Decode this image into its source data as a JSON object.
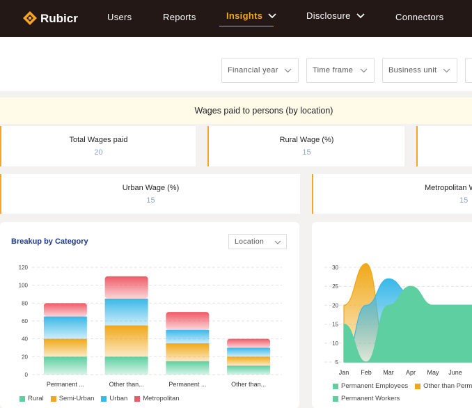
{
  "nav": {
    "brand": "Rubicr",
    "items": [
      "Users",
      "Reports",
      "Insights",
      "Disclosure",
      "Connectors"
    ]
  },
  "filters": {
    "financial_year": "Financial year",
    "time_frame": "Time frame",
    "business_unit": "Business unit"
  },
  "section": {
    "title": "Wages paid to persons (by location)"
  },
  "kpis": [
    {
      "title": "Total Wages paid",
      "value": "20"
    },
    {
      "title": "Rural Wage (%)",
      "value": "15"
    },
    {
      "title": "Urban Wage (%)",
      "value": "15"
    },
    {
      "title": "Metropolitan W",
      "value": "15"
    }
  ],
  "breakup": {
    "title": "Breakup by Category",
    "select": "Location"
  },
  "colors": {
    "accent": "#f5a623",
    "rural": "#5dcfa0",
    "semi_urban": "#f0a818",
    "urban": "#3ab8e8",
    "metropolitan": "#ef5a66",
    "nav_bg": "#231815"
  },
  "chart_data": [
    {
      "type": "bar",
      "stacked": true,
      "categories": [
        "Permanent ...",
        "Other than...",
        "Permanent ...",
        "Other than..."
      ],
      "series": [
        {
          "name": "Rural",
          "values": [
            20,
            20,
            15,
            10
          ]
        },
        {
          "name": "Semi-Urban",
          "values": [
            20,
            35,
            20,
            10
          ]
        },
        {
          "name": "Urban",
          "values": [
            25,
            30,
            15,
            10
          ]
        },
        {
          "name": "Metropolitan",
          "values": [
            15,
            25,
            20,
            10
          ]
        }
      ],
      "y_ticks": [
        "0",
        "20",
        "40",
        "60",
        "80",
        "100",
        "120"
      ],
      "ylim": [
        0,
        120
      ],
      "legend_position": "bottom-left",
      "grid": true
    },
    {
      "type": "area",
      "categories": [
        "Jan",
        "Feb",
        "Mar",
        "Apr",
        "May",
        "June"
      ],
      "y_ticks": [
        "5",
        "10",
        "15",
        "20",
        "25",
        "30"
      ],
      "ylim": [
        5,
        30
      ],
      "series": [
        {
          "name": "Permanent Employees",
          "values": [
            15,
            5,
            20,
            25,
            20,
            20
          ]
        },
        {
          "name": "Other than Permane",
          "values": [
            20,
            31,
            5,
            5,
            5,
            5
          ]
        },
        {
          "name": "Permanent Workers",
          "values": [
            5,
            20,
            27,
            23,
            20,
            20
          ]
        }
      ],
      "legend_position": "bottom-left",
      "grid": true
    }
  ]
}
